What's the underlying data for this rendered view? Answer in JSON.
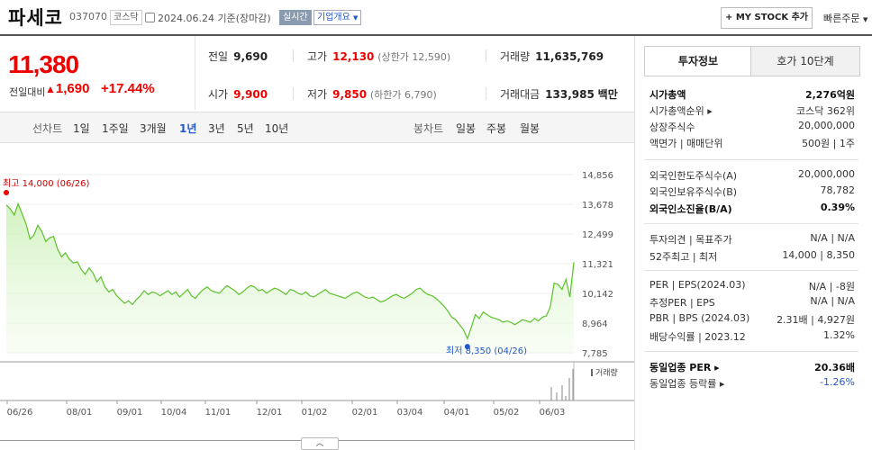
{
  "header": {
    "company": "파세코",
    "code": "037070",
    "market": "코스닥",
    "date_text": "2024.06.24 기준(장마감)",
    "realtime": "실시간",
    "company_info": "기업개요",
    "mystock_label": "+ MY STOCK 추가",
    "fast_order": "빠른주문"
  },
  "price": {
    "current": "11,380",
    "prev_label": "전일대비",
    "change": "1,690",
    "change_pct": "+17.44%"
  },
  "summary": {
    "prev_close_label": "전일",
    "prev_close": "9,690",
    "high_label": "고가",
    "high": "12,130",
    "upper_limit": "(상한가 12,590)",
    "volume_label": "거래량",
    "volume": "11,635,769",
    "open_label": "시가",
    "open": "9,900",
    "low_label": "저가",
    "low": "9,850",
    "lower_limit": "(하한가 6,790)",
    "amount_label": "거래대금",
    "amount": "133,985",
    "amount_unit": "백만"
  },
  "tabs": {
    "line_label": "선차트",
    "line": [
      "1일",
      "1주일",
      "3개월",
      "1년",
      "3년",
      "5년",
      "10년"
    ],
    "active": "1년",
    "candle_label": "봉차트",
    "candle": [
      "일봉",
      "주봉",
      "월봉"
    ]
  },
  "sidebar": {
    "tab_invest": "투자정보",
    "tab_quote": "호가 10단계",
    "rows": [
      {
        "k": "시가총액",
        "v": "2,276억원",
        "bold": true
      },
      {
        "k": "시가총액순위 ▸",
        "v": "코스닥 362위"
      },
      {
        "k": "상장주식수",
        "v": "20,000,000"
      },
      {
        "k": "액면가 | 매매단위",
        "v": "500원 | 1주"
      },
      {
        "k": "외국인한도주식수(A)",
        "v": "20,000,000"
      },
      {
        "k": "외국인보유주식수(B)",
        "v": "78,782"
      },
      {
        "k": "외국인소진율(B/A)",
        "v": "0.39%",
        "bold": true
      },
      {
        "k": "투자의견 | 목표주가",
        "v": "N/A | N/A"
      },
      {
        "k": "52주최고 | 최저",
        "v": "14,000 | 8,350"
      },
      {
        "k": "PER | EPS(2024.03)",
        "v": "N/A | -8원"
      },
      {
        "k": "추정PER | EPS",
        "v": "N/A | N/A"
      },
      {
        "k": "PBR | BPS (2024.03)",
        "v": "2.31배 | 4,927원"
      },
      {
        "k": "배당수익률 | 2023.12",
        "v": "1.32%"
      },
      {
        "k": "동일업종 PER ▸",
        "v": "20.36배",
        "bold": true
      },
      {
        "k": "동일업종 등락률 ▸",
        "v": "-1.26%",
        "blue": true
      }
    ]
  },
  "chart_data": {
    "type": "area",
    "yticks": [
      "14,856",
      "13,678",
      "12,499",
      "11,321",
      "10,142",
      "8,964",
      "7,785"
    ],
    "ylim": [
      7785,
      14856
    ],
    "xticks": [
      "06/26",
      "08/01",
      "09/01",
      "10/04",
      "11/01",
      "12/01",
      "01/02",
      "02/01",
      "03/04",
      "04/01",
      "05/02",
      "06/03"
    ],
    "high_annotation": "최고 14,000 (06/26)",
    "low_annotation": "최저 8,350 (04/26)",
    "volume_label": "거래량",
    "series": [
      {
        "values": [
          13650,
          13500,
          13250,
          13700,
          13300,
          12900,
          12300,
          12450,
          12850,
          12600,
          12200,
          12350,
          12400,
          11900,
          11600,
          11750,
          11500,
          11350,
          11400,
          11100,
          10900,
          11150,
          10950,
          10600,
          10800,
          10400,
          10200,
          10300,
          10050,
          9900,
          9750,
          9850,
          9700,
          9900,
          10050,
          10250,
          10100,
          10200,
          10150,
          10050,
          10150,
          10250,
          10100,
          10200,
          10000,
          10150,
          10300,
          10050,
          9950,
          10150,
          10300,
          10400,
          10250,
          10200,
          10150,
          10300,
          10450,
          10350,
          10250,
          10100,
          10200,
          10350,
          10450,
          10400,
          10250,
          10300,
          10150,
          10250,
          10350,
          10300,
          10200,
          10100,
          10300,
          10250,
          10150,
          10100,
          10200,
          10050,
          10000,
          10100,
          10200,
          10300,
          10150,
          10100,
          10050,
          10000,
          9950,
          10050,
          10150,
          10200,
          10100,
          10000,
          9950,
          10000,
          9900,
          9800,
          9850,
          9950,
          10050,
          10100,
          10000,
          9950,
          10050,
          10150,
          10300,
          10350,
          10200,
          10100,
          10050,
          9950,
          9800,
          9650,
          9450,
          9200,
          9100,
          8900,
          8700,
          8350,
          8800,
          9300,
          9150,
          9400,
          9300,
          9200,
          9150,
          9100,
          9000,
          9050,
          9000,
          8900,
          9000,
          9100,
          9050,
          9000,
          9150,
          9050,
          9200,
          9250,
          9600,
          10550,
          10500,
          10300,
          10700,
          10000,
          11380
        ]
      }
    ]
  }
}
